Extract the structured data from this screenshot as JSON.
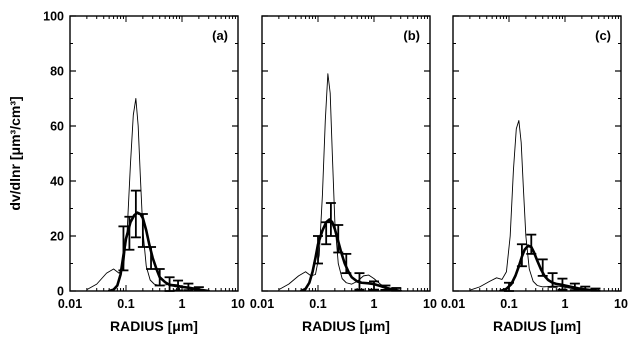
{
  "chart_data": [
    {
      "type": "line",
      "panel_label": "(a)",
      "xlabel": "RADIUS [μm]",
      "ylabel": "dv/dlnr [μm³/cm³]",
      "x_scale": "log",
      "xlim": [
        0.01,
        10
      ],
      "ylim": [
        0,
        100
      ],
      "x_ticks": [
        0.01,
        0.1,
        1,
        10
      ],
      "x_tick_labels": [
        "0.01",
        "0.1",
        "1",
        "10"
      ],
      "y_ticks": [
        0,
        20,
        40,
        60,
        80,
        100
      ],
      "y_tick_labels": [
        "0",
        "20",
        "40",
        "60",
        "80",
        "100"
      ],
      "grid": false,
      "thin_curve": {
        "x": [
          0.02,
          0.03,
          0.045,
          0.06,
          0.075,
          0.09,
          0.105,
          0.12,
          0.135,
          0.15,
          0.165,
          0.18,
          0.2,
          0.23,
          0.27,
          0.32,
          0.4,
          0.5,
          0.6,
          0.8,
          1.0,
          1.5,
          2,
          3
        ],
        "y": [
          0.5,
          2.5,
          6.5,
          8.0,
          6.5,
          8.5,
          22,
          46,
          64,
          70,
          60,
          42,
          22,
          9,
          4,
          2.5,
          2,
          2.2,
          2.5,
          2.3,
          1.8,
          0.8,
          0.3,
          0
        ]
      },
      "thick_curve": {
        "x": [
          0.05,
          0.06,
          0.07,
          0.08,
          0.09,
          0.1,
          0.12,
          0.14,
          0.16,
          0.18,
          0.2,
          0.23,
          0.26,
          0.3,
          0.35,
          0.4,
          0.5,
          0.6,
          0.7,
          0.8,
          1.0,
          1.3,
          1.7,
          2.2,
          3
        ],
        "y": [
          0,
          0.5,
          2,
          6,
          13,
          19,
          25,
          27.5,
          28.5,
          28,
          26.5,
          22,
          17,
          12,
          8,
          5,
          3.2,
          2.2,
          2,
          1.8,
          1.5,
          1.2,
          0.8,
          0.4,
          0
        ]
      },
      "error_bars": [
        {
          "x": 0.09,
          "y": 15.5,
          "err": 8
        },
        {
          "x": 0.115,
          "y": 21,
          "err": 6
        },
        {
          "x": 0.15,
          "y": 28,
          "err": 8.5
        },
        {
          "x": 0.2,
          "y": 22,
          "err": 6
        },
        {
          "x": 0.28,
          "y": 12,
          "err": 4
        },
        {
          "x": 0.4,
          "y": 5,
          "err": 3
        },
        {
          "x": 0.6,
          "y": 2.5,
          "err": 2.5
        },
        {
          "x": 0.85,
          "y": 2,
          "err": 1.8
        },
        {
          "x": 1.3,
          "y": 1.5,
          "err": 1.2
        },
        {
          "x": 2.0,
          "y": 0.8,
          "err": 0.6
        }
      ]
    },
    {
      "type": "line",
      "panel_label": "(b)",
      "xlabel": "RADIUS [μm]",
      "ylabel": "",
      "x_scale": "log",
      "xlim": [
        0.01,
        10
      ],
      "ylim": [
        0,
        100
      ],
      "x_ticks": [
        0.01,
        0.1,
        1,
        10
      ],
      "x_tick_labels": [
        "0.01",
        "0.1",
        "1",
        "10"
      ],
      "y_ticks": [
        0,
        20,
        40,
        60,
        80,
        100
      ],
      "y_tick_labels": [],
      "grid": false,
      "thin_curve": {
        "x": [
          0.02,
          0.03,
          0.045,
          0.06,
          0.075,
          0.09,
          0.105,
          0.12,
          0.135,
          0.15,
          0.165,
          0.18,
          0.2,
          0.23,
          0.27,
          0.32,
          0.4,
          0.5,
          0.65,
          0.8,
          1.0,
          1.3,
          1.7,
          2.5
        ],
        "y": [
          0.5,
          2.5,
          5.5,
          7.0,
          5.5,
          6.0,
          13,
          35,
          62,
          79,
          72,
          50,
          25,
          10,
          4.5,
          3,
          2.5,
          3.5,
          5.5,
          5.8,
          4.5,
          2.5,
          1,
          0
        ]
      },
      "thick_curve": {
        "x": [
          0.05,
          0.06,
          0.07,
          0.08,
          0.09,
          0.1,
          0.12,
          0.14,
          0.16,
          0.18,
          0.2,
          0.23,
          0.26,
          0.3,
          0.35,
          0.4,
          0.5,
          0.6,
          0.8,
          1.0,
          1.3,
          1.7,
          2.2,
          3
        ],
        "y": [
          0,
          0.8,
          3,
          7,
          12,
          17,
          22,
          25,
          26,
          25,
          22.5,
          18,
          14,
          10,
          7,
          5,
          3.5,
          3,
          2.8,
          2.5,
          1.8,
          1.1,
          0.5,
          0
        ]
      },
      "error_bars": [
        {
          "x": 0.1,
          "y": 15,
          "err": 5
        },
        {
          "x": 0.14,
          "y": 21,
          "err": 4
        },
        {
          "x": 0.17,
          "y": 26,
          "err": 6
        },
        {
          "x": 0.23,
          "y": 19,
          "err": 5
        },
        {
          "x": 0.32,
          "y": 10,
          "err": 3.5
        },
        {
          "x": 0.55,
          "y": 3.5,
          "err": 3
        },
        {
          "x": 1.0,
          "y": 2,
          "err": 1.5
        },
        {
          "x": 1.6,
          "y": 1.2,
          "err": 0.8
        },
        {
          "x": 2.5,
          "y": 0.6,
          "err": 0.5
        }
      ]
    },
    {
      "type": "line",
      "panel_label": "(c)",
      "xlabel": "RADIUS [μm]",
      "ylabel": "",
      "x_scale": "log",
      "xlim": [
        0.01,
        10
      ],
      "ylim": [
        0,
        100
      ],
      "x_ticks": [
        0.01,
        0.1,
        1,
        10
      ],
      "x_tick_labels": [
        "0.01",
        "0.1",
        "1",
        "10"
      ],
      "y_ticks": [
        0,
        20,
        40,
        60,
        80,
        100
      ],
      "y_tick_labels": [],
      "grid": false,
      "thin_curve": {
        "x": [
          0.02,
          0.03,
          0.045,
          0.06,
          0.075,
          0.09,
          0.105,
          0.12,
          0.135,
          0.15,
          0.165,
          0.18,
          0.2,
          0.23,
          0.27,
          0.32,
          0.4,
          0.5,
          0.6,
          0.8,
          1.0,
          1.5,
          2,
          3
        ],
        "y": [
          0.3,
          1.5,
          3.5,
          4.8,
          4.2,
          7,
          20,
          44,
          59,
          62,
          54,
          38,
          20,
          8,
          3.5,
          2,
          1.5,
          1.6,
          1.8,
          1.7,
          1.4,
          0.7,
          0.3,
          0
        ]
      },
      "thick_curve": {
        "x": [
          0.07,
          0.09,
          0.11,
          0.13,
          0.15,
          0.17,
          0.19,
          0.22,
          0.25,
          0.28,
          0.32,
          0.37,
          0.43,
          0.5,
          0.6,
          0.7,
          0.85,
          1.0,
          1.3,
          1.7,
          2.2,
          3,
          4
        ],
        "y": [
          0,
          0.8,
          2.5,
          5.5,
          9,
          12.5,
          15,
          16.5,
          16,
          14,
          11,
          8,
          5.5,
          4,
          3,
          2.6,
          2.3,
          2,
          1.5,
          1,
          0.6,
          0.3,
          0
        ]
      },
      "error_bars": [
        {
          "x": 0.1,
          "y": 1.5,
          "err": 1.5
        },
        {
          "x": 0.17,
          "y": 13,
          "err": 4
        },
        {
          "x": 0.25,
          "y": 17,
          "err": 3.5
        },
        {
          "x": 0.4,
          "y": 8.5,
          "err": 3
        },
        {
          "x": 0.6,
          "y": 4,
          "err": 2.5
        },
        {
          "x": 0.9,
          "y": 2.5,
          "err": 2
        },
        {
          "x": 1.5,
          "y": 1.5,
          "err": 1.2
        },
        {
          "x": 2.3,
          "y": 0.9,
          "err": 0.7
        },
        {
          "x": 3.5,
          "y": 0.5,
          "err": 0.4
        }
      ]
    }
  ]
}
